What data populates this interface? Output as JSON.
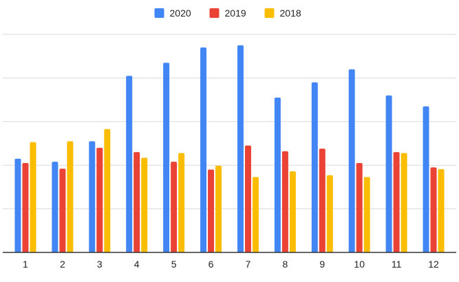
{
  "chart_data": {
    "type": "bar",
    "title": "",
    "xlabel": "",
    "ylabel": "",
    "categories": [
      "1",
      "2",
      "3",
      "4",
      "5",
      "6",
      "7",
      "8",
      "9",
      "10",
      "11",
      "12"
    ],
    "series": [
      {
        "name": "2020",
        "color": "#4285F4",
        "values": [
          21.5,
          20.8,
          25.5,
          40.5,
          43.5,
          47,
          47.5,
          35.5,
          39,
          42,
          36,
          33.5
        ]
      },
      {
        "name": "2019",
        "color": "#EA4335",
        "values": [
          20.5,
          19.2,
          24,
          23,
          20.8,
          19,
          24.5,
          23.2,
          23.8,
          20.5,
          23,
          19.5
        ]
      },
      {
        "name": "2018",
        "color": "#FBBC04",
        "values": [
          25.3,
          25.5,
          28.3,
          21.7,
          22.8,
          19.9,
          17.3,
          18.6,
          17.7,
          17.3,
          22.8,
          19.1
        ]
      }
    ],
    "ylim": [
      0,
      50
    ],
    "grid_step": 10,
    "grid": true,
    "y_tick_labels": false,
    "legend": "top-center"
  }
}
